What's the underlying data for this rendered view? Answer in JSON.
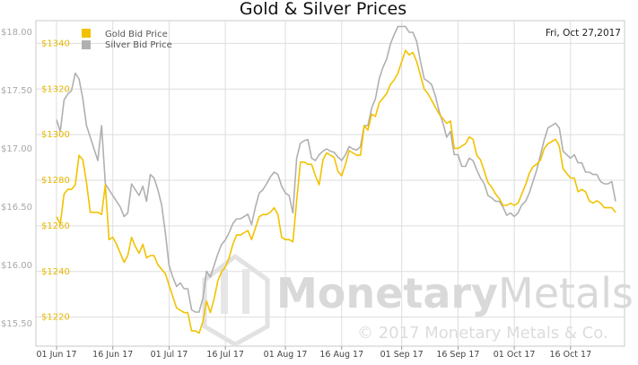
{
  "chart_data": {
    "type": "line",
    "title": "Gold & Silver Prices",
    "date_label": "Fri, Oct 27,2017",
    "watermark": {
      "brand_bold": "Monetary",
      "brand_light": "Metals",
      "copyright": "© 2017 Monetary Metals & Co."
    },
    "x_ticks": [
      "01 Jun 17",
      "16 Jun 17",
      "01 Jul 17",
      "16 Jul 17",
      "01 Aug 17",
      "16 Aug 17",
      "01 Sep 17",
      "16 Sep 17",
      "01 Oct 17",
      "16 Oct 17"
    ],
    "x_tick_days": [
      0,
      15,
      30,
      45,
      61,
      76,
      92,
      107,
      122,
      137
    ],
    "x_range_days": [
      0,
      149
    ],
    "y_left": {
      "label": "",
      "ticks": [
        "$1220",
        "$1240",
        "$1260",
        "$1280",
        "$1300",
        "$1320",
        "$1340"
      ],
      "range": [
        1212,
        1350
      ]
    },
    "y_right_silver": {
      "label": "",
      "ticks": [
        "$15.50",
        "$16.00",
        "$16.50",
        "$17.00",
        "$17.50",
        "$18.00"
      ],
      "range": [
        15.4,
        18.1
      ]
    },
    "grid": true,
    "legend_position": "top-left",
    "colors": {
      "gold": "#f2c200",
      "silver": "#b0b0b0",
      "grid": "#dddddd"
    },
    "series": [
      {
        "name": "Gold Bid Price",
        "axis": "gold",
        "x": [
          0,
          1,
          2,
          3,
          4,
          5,
          6,
          7,
          8,
          9,
          10,
          11,
          12,
          13,
          14,
          15,
          16,
          17,
          18,
          19,
          20,
          21,
          22,
          23,
          24,
          25,
          26,
          27,
          28,
          29,
          30,
          31,
          32,
          33,
          34,
          35,
          36,
          37,
          38,
          39,
          40,
          41,
          42,
          43,
          44,
          45,
          46,
          47,
          48,
          49,
          50,
          51,
          52,
          53,
          54,
          55,
          56,
          57,
          58,
          59,
          60,
          61,
          62,
          63,
          64,
          65,
          66,
          67,
          68,
          69,
          70,
          71,
          72,
          73,
          74,
          75,
          76,
          77,
          78,
          79,
          80,
          81,
          82,
          83,
          84,
          85,
          86,
          87,
          88,
          89,
          90,
          91,
          92,
          93,
          94,
          95,
          96,
          97,
          98,
          99,
          100,
          101,
          102,
          103,
          104,
          105,
          106,
          107,
          108,
          109,
          110,
          111,
          112,
          113,
          114,
          115,
          116,
          117,
          118,
          119,
          120,
          121,
          122,
          123,
          124,
          125,
          126,
          127,
          128,
          129,
          130,
          131,
          132,
          133,
          134,
          135,
          136,
          137,
          138,
          139,
          140,
          141,
          142,
          143,
          144,
          145,
          146,
          147,
          148,
          149
        ],
        "values": [
          1264,
          1261,
          1274,
          1276,
          1276,
          1278,
          1291,
          1289,
          1279,
          1266,
          1266,
          1266,
          1265,
          1278,
          1254,
          1255,
          1252,
          1248,
          1244,
          1247,
          1255,
          1251,
          1248,
          1252,
          1246,
          1247,
          1247,
          1243,
          1241,
          1239,
          1234,
          1229,
          1224,
          1223,
          1222,
          1222,
          1214,
          1214,
          1213,
          1218,
          1227,
          1222,
          1228,
          1236,
          1240,
          1242,
          1246,
          1252,
          1256,
          1256,
          1257,
          1258,
          1254,
          1259,
          1264,
          1265,
          1265,
          1266,
          1268,
          1265,
          1255,
          1254,
          1254,
          1253,
          1271,
          1288,
          1288,
          1287,
          1287,
          1282,
          1278,
          1289,
          1292,
          1291,
          1290,
          1284,
          1282,
          1287,
          1293,
          1292,
          1291,
          1291,
          1304,
          1302,
          1309,
          1308,
          1314,
          1316,
          1318,
          1322,
          1324,
          1327,
          1332,
          1337,
          1335,
          1336,
          1332,
          1326,
          1320,
          1318,
          1315,
          1312,
          1309,
          1307,
          1305,
          1306,
          1294,
          1294,
          1295,
          1296,
          1299,
          1298,
          1291,
          1289,
          1284,
          1279,
          1277,
          1274,
          1272,
          1269,
          1269,
          1270,
          1269,
          1270,
          1274,
          1278,
          1283,
          1286,
          1287,
          1289,
          1294,
          1296,
          1297,
          1298,
          1295,
          1285,
          1283,
          1281,
          1281,
          1275,
          1276,
          1275,
          1271,
          1270,
          1271,
          1270,
          1268,
          1268,
          1268,
          1266
        ]
      },
      {
        "name": "Silver Bid Price",
        "axis": "silver",
        "x": [
          0,
          1,
          2,
          3,
          4,
          5,
          6,
          7,
          8,
          9,
          10,
          11,
          12,
          13,
          14,
          15,
          16,
          17,
          18,
          19,
          20,
          21,
          22,
          23,
          24,
          25,
          26,
          27,
          28,
          29,
          30,
          31,
          32,
          33,
          34,
          35,
          36,
          37,
          38,
          39,
          40,
          41,
          42,
          43,
          44,
          45,
          46,
          47,
          48,
          49,
          50,
          51,
          52,
          53,
          54,
          55,
          56,
          57,
          58,
          59,
          60,
          61,
          62,
          63,
          64,
          65,
          66,
          67,
          68,
          69,
          70,
          71,
          72,
          73,
          74,
          75,
          76,
          77,
          78,
          79,
          80,
          81,
          82,
          83,
          84,
          85,
          86,
          87,
          88,
          89,
          90,
          91,
          92,
          93,
          94,
          95,
          96,
          97,
          98,
          99,
          100,
          101,
          102,
          103,
          104,
          105,
          106,
          107,
          108,
          109,
          110,
          111,
          112,
          113,
          114,
          115,
          116,
          117,
          118,
          119,
          120,
          121,
          122,
          123,
          124,
          125,
          126,
          127,
          128,
          129,
          130,
          131,
          132,
          133,
          134,
          135,
          136,
          137,
          138,
          139,
          140,
          141,
          142,
          143,
          144,
          145,
          146,
          147,
          148,
          149
        ],
        "values": [
          17.25,
          17.15,
          17.42,
          17.47,
          17.5,
          17.65,
          17.6,
          17.43,
          17.2,
          17.1,
          17.0,
          16.9,
          17.2,
          16.7,
          16.65,
          16.6,
          16.55,
          16.5,
          16.42,
          16.45,
          16.7,
          16.65,
          16.6,
          16.68,
          16.55,
          16.78,
          16.75,
          16.65,
          16.52,
          16.28,
          16.0,
          15.9,
          15.82,
          15.85,
          15.8,
          15.8,
          15.62,
          15.6,
          15.6,
          15.72,
          15.95,
          15.9,
          16.0,
          16.1,
          16.18,
          16.22,
          16.28,
          16.36,
          16.4,
          16.4,
          16.42,
          16.44,
          16.35,
          16.5,
          16.62,
          16.65,
          16.7,
          16.76,
          16.8,
          16.78,
          16.68,
          16.62,
          16.6,
          16.45,
          16.92,
          17.05,
          17.07,
          17.08,
          16.92,
          16.9,
          16.95,
          16.98,
          17.0,
          16.98,
          16.97,
          16.93,
          16.9,
          16.95,
          17.02,
          17.0,
          16.99,
          17.02,
          17.2,
          17.2,
          17.35,
          17.43,
          17.6,
          17.7,
          17.77,
          17.9,
          17.98,
          18.05,
          18.05,
          18.05,
          18.0,
          18.0,
          17.92,
          17.75,
          17.6,
          17.58,
          17.55,
          17.45,
          17.32,
          17.22,
          17.1,
          17.15,
          16.95,
          16.95,
          16.85,
          16.85,
          16.92,
          16.9,
          16.82,
          16.75,
          16.7,
          16.6,
          16.58,
          16.55,
          16.55,
          16.5,
          16.43,
          16.45,
          16.42,
          16.45,
          16.52,
          16.55,
          16.62,
          16.72,
          16.82,
          16.95,
          17.08,
          17.18,
          17.2,
          17.22,
          17.18,
          16.98,
          16.95,
          16.92,
          16.95,
          16.88,
          16.88,
          16.8,
          16.8,
          16.78,
          16.78,
          16.72,
          16.7,
          16.7,
          16.72,
          16.55
        ]
      }
    ]
  }
}
